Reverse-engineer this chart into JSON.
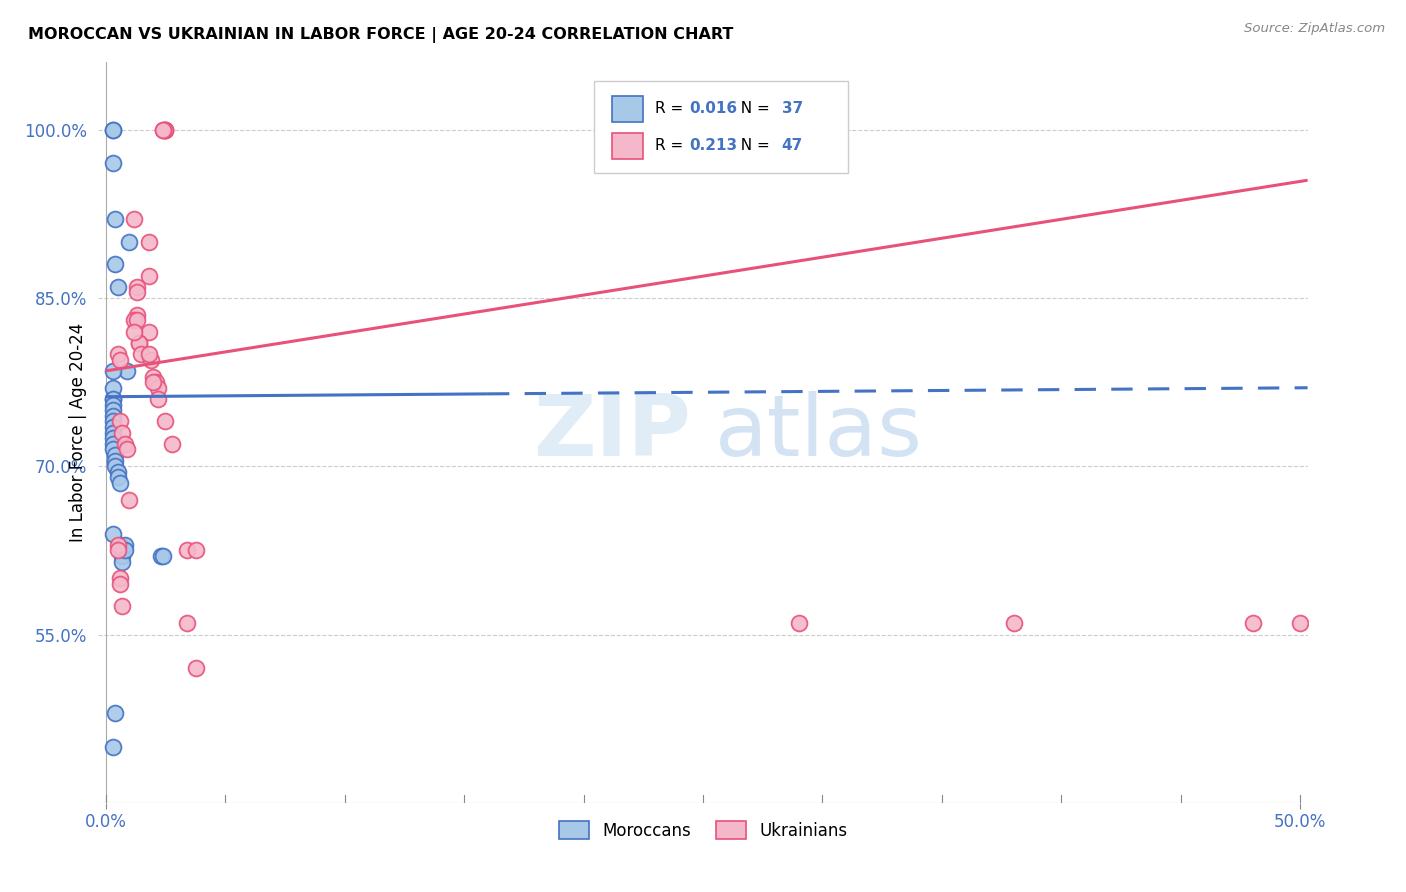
{
  "title": "MOROCCAN VS UKRAINIAN IN LABOR FORCE | AGE 20-24 CORRELATION CHART",
  "source": "Source: ZipAtlas.com",
  "ylabel": "In Labor Force | Age 20-24",
  "ytick_labels": [
    "55.0%",
    "70.0%",
    "85.0%",
    "100.0%"
  ],
  "ytick_vals": [
    0.55,
    0.7,
    0.85,
    1.0
  ],
  "xlim": [
    -0.003,
    0.503
  ],
  "ylim": [
    0.4,
    1.06
  ],
  "moroccan_R": "0.016",
  "moroccan_N": "37",
  "ukrainian_R": "0.213",
  "ukrainian_N": "47",
  "moroccan_line_color": "#4472c4",
  "moroccan_fill_color": "#a8c8e8",
  "ukrainian_line_color": "#e8527a",
  "ukrainian_fill_color": "#f5b8cb",
  "moroccan_x": [
    0.003,
    0.009,
    0.01,
    0.004,
    0.005,
    0.003,
    0.003,
    0.003,
    0.003,
    0.003,
    0.003,
    0.003,
    0.003,
    0.003,
    0.003,
    0.003,
    0.004,
    0.004,
    0.004,
    0.005,
    0.005,
    0.006,
    0.006,
    0.007,
    0.007,
    0.008,
    0.008,
    0.003,
    0.003,
    0.004,
    0.003,
    0.003,
    0.023,
    0.024,
    0.004,
    0.003,
    0.003
  ],
  "moroccan_y": [
    0.76,
    0.785,
    0.9,
    0.88,
    0.86,
    0.77,
    0.76,
    0.755,
    0.75,
    0.745,
    0.74,
    0.735,
    0.73,
    0.725,
    0.72,
    0.715,
    0.71,
    0.705,
    0.7,
    0.695,
    0.69,
    0.685,
    0.63,
    0.62,
    0.615,
    0.63,
    0.625,
    1.0,
    1.0,
    0.92,
    0.97,
    0.785,
    0.62,
    0.62,
    0.48,
    0.45,
    0.64
  ],
  "ukrainian_x": [
    0.025,
    0.025,
    0.025,
    0.024,
    0.024,
    0.012,
    0.018,
    0.018,
    0.013,
    0.013,
    0.013,
    0.012,
    0.013,
    0.018,
    0.014,
    0.014,
    0.015,
    0.019,
    0.02,
    0.021,
    0.022,
    0.006,
    0.007,
    0.008,
    0.009,
    0.01,
    0.005,
    0.005,
    0.006,
    0.006,
    0.007,
    0.034,
    0.038,
    0.034,
    0.038,
    0.005,
    0.006,
    0.29,
    0.38,
    0.48,
    0.5,
    0.012,
    0.018,
    0.02,
    0.022,
    0.025,
    0.028
  ],
  "ukrainian_y": [
    1.0,
    1.0,
    1.0,
    1.0,
    1.0,
    0.92,
    0.9,
    0.87,
    0.86,
    0.855,
    0.835,
    0.83,
    0.83,
    0.82,
    0.81,
    0.81,
    0.8,
    0.795,
    0.78,
    0.775,
    0.77,
    0.74,
    0.73,
    0.72,
    0.715,
    0.67,
    0.63,
    0.625,
    0.6,
    0.595,
    0.575,
    0.625,
    0.625,
    0.56,
    0.52,
    0.8,
    0.795,
    0.56,
    0.56,
    0.56,
    0.56,
    0.82,
    0.8,
    0.775,
    0.76,
    0.74,
    0.72
  ],
  "trend_moroccan_x0": 0.0,
  "trend_moroccan_x1": 0.503,
  "trend_moroccan_y0": 0.762,
  "trend_moroccan_y1": 0.77,
  "trend_moroccan_solid_end_x": 0.16,
  "trend_ukrainian_x0": 0.0,
  "trend_ukrainian_x1": 0.503,
  "trend_ukrainian_y0": 0.785,
  "trend_ukrainian_y1": 0.955,
  "grid_color": "#cccccc",
  "watermark_ZIP_color": "#c8ddf0",
  "watermark_atlas_color": "#a8c8e8"
}
